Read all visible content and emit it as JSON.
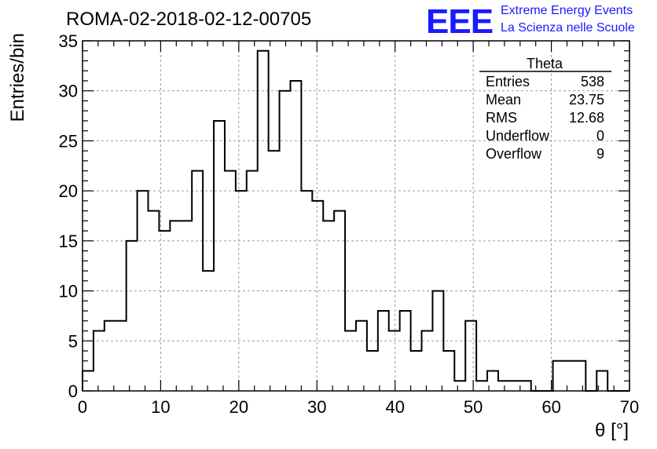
{
  "chart_data": {
    "type": "bar",
    "title": "ROMA-02-2018-02-12-00705",
    "xlabel": "θ [°]",
    "ylabel": "Entries/bin",
    "xlim": [
      0,
      70
    ],
    "ylim": [
      0,
      35
    ],
    "xticks": [
      0,
      10,
      20,
      30,
      40,
      50,
      60,
      70
    ],
    "yticks": [
      0,
      5,
      10,
      15,
      20,
      25,
      30,
      35
    ],
    "grid": true,
    "legend": "none",
    "bin_width": 1.4,
    "bin_edges_start": 0,
    "values": [
      2,
      6,
      7,
      7,
      15,
      20,
      18,
      16,
      17,
      17,
      22,
      12,
      27,
      22,
      20,
      22,
      34,
      24,
      30,
      31,
      20,
      19,
      17,
      18,
      6,
      7,
      4,
      8,
      6,
      8,
      4,
      6,
      10,
      4,
      1,
      7,
      1,
      2,
      1,
      1,
      1,
      0,
      0,
      3,
      3,
      3,
      0,
      2,
      0,
      0
    ],
    "stats_box": {
      "title": "Theta",
      "rows": [
        {
          "label": "Entries",
          "value": "538"
        },
        {
          "label": "Mean",
          "value": "23.75"
        },
        {
          "label": "RMS",
          "value": "12.68"
        },
        {
          "label": "Underflow",
          "value": "0"
        },
        {
          "label": "Overflow",
          "value": "9"
        }
      ]
    },
    "logo": {
      "letters": "EEE",
      "line1": "Extreme Energy Events",
      "line2": "La Scienza nelle Scuole",
      "color": "#1a1aff"
    }
  }
}
